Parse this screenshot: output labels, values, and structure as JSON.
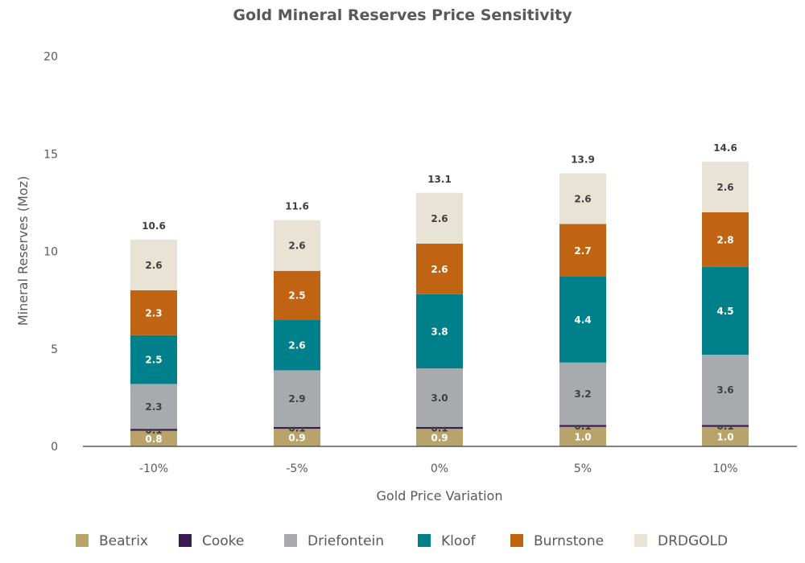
{
  "chart_data": {
    "type": "bar",
    "stacked": true,
    "title": "Gold Mineral Reserves Price Sensitivity",
    "xlabel": "Gold Price Variation",
    "ylabel": "Mineral Reserves (Moz)",
    "ylim": [
      0,
      20
    ],
    "yticks": [
      0,
      5,
      10,
      15,
      20
    ],
    "grid": false,
    "legend_position": "bottom",
    "categories": [
      "-10%",
      "-5%",
      "0%",
      "5%",
      "10%"
    ],
    "series": [
      {
        "name": "Beatrix",
        "color": "#b8a46a",
        "label_color": "#ffffff",
        "values": [
          0.8,
          0.9,
          0.9,
          1.0,
          1.0
        ]
      },
      {
        "name": "Cooke",
        "color": "#3a1a52",
        "label_color": "#404040",
        "values": [
          0.1,
          0.1,
          0.1,
          0.1,
          0.1
        ]
      },
      {
        "name": "Driefontein",
        "color": "#a7abad",
        "label_color": "#404040",
        "values": [
          2.3,
          2.9,
          3.0,
          3.2,
          3.6
        ]
      },
      {
        "name": "Kloof",
        "color": "#00808a",
        "label_color": "#ffffff",
        "values": [
          2.5,
          2.6,
          3.8,
          4.4,
          4.5
        ]
      },
      {
        "name": "Burnstone",
        "color": "#c06414",
        "label_color": "#ffffff",
        "values": [
          2.3,
          2.5,
          2.6,
          2.7,
          2.8
        ]
      },
      {
        "name": "DRDGOLD",
        "color": "#e8e3d4",
        "label_color": "#404040",
        "values": [
          2.6,
          2.6,
          2.6,
          2.6,
          2.6
        ]
      }
    ],
    "totals": [
      10.6,
      11.6,
      13.1,
      13.9,
      14.6
    ]
  }
}
